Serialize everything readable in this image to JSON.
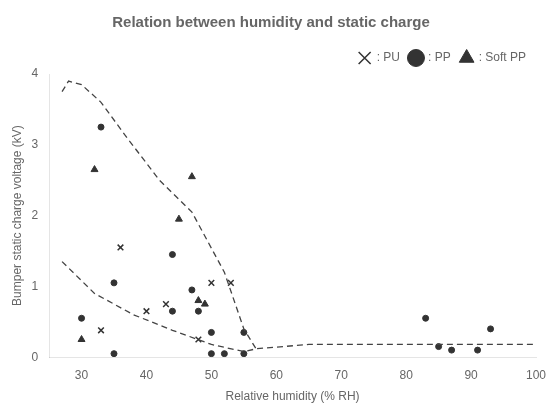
{
  "chart_data": {
    "type": "scatter",
    "title": "Relation between humidity and static charge",
    "xlabel": "Relative humidity (% RH)",
    "ylabel": "Bumper static charge voltage (kV)",
    "xlim": [
      25,
      100
    ],
    "ylim": [
      0,
      4
    ],
    "xticks": [
      30,
      40,
      50,
      60,
      70,
      80,
      90,
      100
    ],
    "yticks": [
      0,
      1,
      2,
      3,
      4
    ],
    "grid": false,
    "legend": "upper right",
    "series": [
      {
        "type": "line",
        "line_style": "dashed",
        "color": "#444444",
        "x": [
          27,
          28,
          30,
          33,
          37,
          42,
          47,
          52,
          55,
          57
        ],
        "values": [
          3.75,
          3.9,
          3.85,
          3.6,
          3.1,
          2.5,
          2.05,
          1.2,
          0.4,
          0.1
        ]
      },
      {
        "type": "line",
        "line_style": "dashed",
        "color": "#444444",
        "x": [
          27,
          32,
          38,
          44,
          50,
          55,
          57,
          65,
          75,
          85,
          95,
          100
        ],
        "values": [
          1.35,
          0.9,
          0.6,
          0.38,
          0.18,
          0.08,
          0.12,
          0.18,
          0.18,
          0.18,
          0.18,
          0.18
        ]
      },
      {
        "name": ": PU",
        "type": "scatter",
        "marker": "x",
        "color": "#333333",
        "x": [
          33,
          36,
          40,
          43,
          48,
          50,
          53
        ],
        "values": [
          0.38,
          1.55,
          0.65,
          0.75,
          0.25,
          1.05,
          1.05
        ]
      },
      {
        "name": ": PP",
        "type": "scatter",
        "marker": "circle",
        "color": "#333333",
        "x": [
          30,
          33,
          35,
          35,
          44,
          44,
          47,
          48,
          50,
          50,
          52,
          55,
          55,
          83,
          85,
          87,
          91,
          93
        ],
        "values": [
          0.55,
          3.25,
          0.05,
          1.05,
          1.45,
          0.65,
          0.95,
          0.65,
          0.35,
          0.05,
          0.05,
          0.05,
          0.35,
          0.55,
          0.15,
          0.1,
          0.1,
          0.4
        ]
      },
      {
        "name": ": Soft PP",
        "type": "scatter",
        "marker": "triangle",
        "color": "#333333",
        "x": [
          30,
          32,
          45,
          47,
          48,
          49
        ],
        "values": [
          0.25,
          2.65,
          1.95,
          2.55,
          0.8,
          0.75
        ]
      }
    ]
  }
}
